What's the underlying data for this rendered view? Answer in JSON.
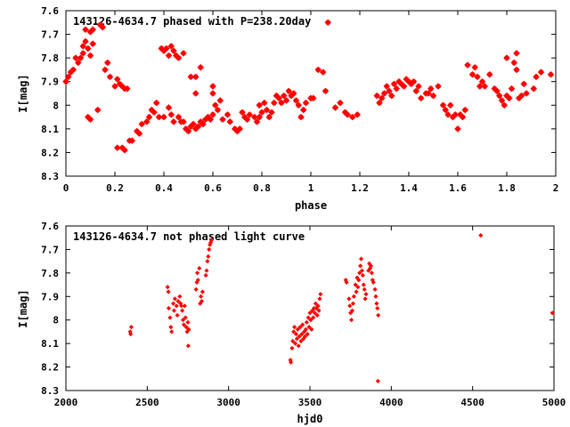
{
  "chart_data": [
    {
      "type": "scatter",
      "title": "143126-4634.7 phased with P=238.20day",
      "xlabel": "phase",
      "ylabel": "I[mag]",
      "xlim": [
        0,
        2
      ],
      "ylim": [
        8.3,
        7.6
      ],
      "y_inverted": true,
      "xticks": [
        0,
        0.2,
        0.4,
        0.6,
        0.8,
        1,
        1.2,
        1.4,
        1.6,
        1.8,
        2
      ],
      "xtick_labels": [
        "0",
        "0.2",
        "0.4",
        "0.6",
        "0.8",
        "1",
        "1.2",
        "1.4",
        "1.6",
        "1.8",
        "2"
      ],
      "yticks": [
        7.6,
        7.7,
        7.8,
        7.9,
        8.0,
        8.1,
        8.2,
        8.3
      ],
      "ytick_labels": [
        "7.6",
        "7.7",
        "7.8",
        "7.9",
        "8",
        "8.1",
        "8.2",
        "8.3"
      ],
      "grid": false,
      "legend": "none",
      "marker_color": "#ff0000",
      "points": [
        [
          0.0,
          7.9
        ],
        [
          0.01,
          7.88
        ],
        [
          0.02,
          7.86
        ],
        [
          0.03,
          7.85
        ],
        [
          0.04,
          7.8
        ],
        [
          0.05,
          7.82
        ],
        [
          0.06,
          7.8
        ],
        [
          0.07,
          7.75
        ],
        [
          0.07,
          7.78
        ],
        [
          0.08,
          7.73
        ],
        [
          0.08,
          7.68
        ],
        [
          0.09,
          7.76
        ],
        [
          0.1,
          7.69
        ],
        [
          0.1,
          7.79
        ],
        [
          0.11,
          7.74
        ],
        [
          0.09,
          8.05
        ],
        [
          0.1,
          8.06
        ],
        [
          0.11,
          7.68
        ],
        [
          0.13,
          8.02
        ],
        [
          0.14,
          7.66
        ],
        [
          0.15,
          7.67
        ],
        [
          0.16,
          7.85
        ],
        [
          0.17,
          7.82
        ],
        [
          0.18,
          7.88
        ],
        [
          0.2,
          7.92
        ],
        [
          0.21,
          7.89
        ],
        [
          0.22,
          7.91
        ],
        [
          0.23,
          7.92
        ],
        [
          0.24,
          7.93
        ],
        [
          0.25,
          7.93
        ],
        [
          0.21,
          8.18
        ],
        [
          0.23,
          8.18
        ],
        [
          0.24,
          8.19
        ],
        [
          0.26,
          8.15
        ],
        [
          0.27,
          8.15
        ],
        [
          0.29,
          8.11
        ],
        [
          0.3,
          8.12
        ],
        [
          0.31,
          8.08
        ],
        [
          0.33,
          8.07
        ],
        [
          0.34,
          8.05
        ],
        [
          0.35,
          8.02
        ],
        [
          0.36,
          8.03
        ],
        [
          0.37,
          7.99
        ],
        [
          0.38,
          8.05
        ],
        [
          0.4,
          8.05
        ],
        [
          0.42,
          8.01
        ],
        [
          0.43,
          8.04
        ],
        [
          0.44,
          8.07
        ],
        [
          0.46,
          8.05
        ],
        [
          0.47,
          8.07
        ],
        [
          0.48,
          8.07
        ],
        [
          0.39,
          7.76
        ],
        [
          0.4,
          7.77
        ],
        [
          0.41,
          7.76
        ],
        [
          0.42,
          7.79
        ],
        [
          0.43,
          7.75
        ],
        [
          0.44,
          7.77
        ],
        [
          0.45,
          7.79
        ],
        [
          0.46,
          7.8
        ],
        [
          0.48,
          7.78
        ],
        [
          0.49,
          8.1
        ],
        [
          0.5,
          8.11
        ],
        [
          0.51,
          8.09
        ],
        [
          0.52,
          8.08
        ],
        [
          0.53,
          8.1
        ],
        [
          0.54,
          8.09
        ],
        [
          0.55,
          8.07
        ],
        [
          0.56,
          8.08
        ],
        [
          0.57,
          8.06
        ],
        [
          0.58,
          8.05
        ],
        [
          0.59,
          8.06
        ],
        [
          0.6,
          8.04
        ],
        [
          0.51,
          7.88
        ],
        [
          0.53,
          7.88
        ],
        [
          0.55,
          7.84
        ],
        [
          0.53,
          7.95
        ],
        [
          0.6,
          7.92
        ],
        [
          0.6,
          7.95
        ],
        [
          0.63,
          7.98
        ],
        [
          0.61,
          8.0
        ],
        [
          0.62,
          8.02
        ],
        [
          0.64,
          8.06
        ],
        [
          0.66,
          8.04
        ],
        [
          0.67,
          8.07
        ],
        [
          0.69,
          8.1
        ],
        [
          0.71,
          8.1
        ],
        [
          0.7,
          8.11
        ],
        [
          0.72,
          8.03
        ],
        [
          0.73,
          8.05
        ],
        [
          0.74,
          8.06
        ],
        [
          0.75,
          8.04
        ],
        [
          0.77,
          8.05
        ],
        [
          0.78,
          8.07
        ],
        [
          0.79,
          8.05
        ],
        [
          0.8,
          8.03
        ],
        [
          0.79,
          8.0
        ],
        [
          0.81,
          7.99
        ],
        [
          0.82,
          8.02
        ],
        [
          0.83,
          8.05
        ],
        [
          0.84,
          8.03
        ],
        [
          0.85,
          7.99
        ],
        [
          0.86,
          7.96
        ],
        [
          0.87,
          7.97
        ],
        [
          0.88,
          7.99
        ],
        [
          0.89,
          7.96
        ],
        [
          0.9,
          7.98
        ],
        [
          0.91,
          7.94
        ],
        [
          0.92,
          7.96
        ],
        [
          0.93,
          7.95
        ],
        [
          0.94,
          7.98
        ],
        [
          0.95,
          8.0
        ],
        [
          0.96,
          8.05
        ],
        [
          0.97,
          8.02
        ],
        [
          0.98,
          7.99
        ],
        [
          1.0,
          7.97
        ],
        [
          1.01,
          7.97
        ],
        [
          1.03,
          7.85
        ],
        [
          1.05,
          7.86
        ],
        [
          1.06,
          7.94
        ],
        [
          1.07,
          7.65
        ],
        [
          1.1,
          8.01
        ],
        [
          1.12,
          7.99
        ],
        [
          1.14,
          8.03
        ],
        [
          1.15,
          8.04
        ],
        [
          1.17,
          8.05
        ],
        [
          1.19,
          8.04
        ],
        [
          1.28,
          7.99
        ],
        [
          1.27,
          7.96
        ],
        [
          1.29,
          7.97
        ],
        [
          1.3,
          7.95
        ],
        [
          1.31,
          7.92
        ],
        [
          1.32,
          7.94
        ],
        [
          1.33,
          7.96
        ],
        [
          1.34,
          7.91
        ],
        [
          1.35,
          7.93
        ],
        [
          1.36,
          7.9
        ],
        [
          1.37,
          7.91
        ],
        [
          1.38,
          7.92
        ],
        [
          1.39,
          7.89
        ],
        [
          1.4,
          7.9
        ],
        [
          1.41,
          7.91
        ],
        [
          1.42,
          7.9
        ],
        [
          1.43,
          7.94
        ],
        [
          1.44,
          7.92
        ],
        [
          1.45,
          7.97
        ],
        [
          1.47,
          7.95
        ],
        [
          1.48,
          7.95
        ],
        [
          1.49,
          7.93
        ],
        [
          1.5,
          7.96
        ],
        [
          1.52,
          7.92
        ],
        [
          1.54,
          8.0
        ],
        [
          1.55,
          8.02
        ],
        [
          1.56,
          8.04
        ],
        [
          1.57,
          8.0
        ],
        [
          1.58,
          8.05
        ],
        [
          1.59,
          8.04
        ],
        [
          1.6,
          8.1
        ],
        [
          1.61,
          8.04
        ],
        [
          1.62,
          8.05
        ],
        [
          1.63,
          8.02
        ],
        [
          1.64,
          7.83
        ],
        [
          1.66,
          7.87
        ],
        [
          1.67,
          7.84
        ],
        [
          1.68,
          7.88
        ],
        [
          1.69,
          7.92
        ],
        [
          1.7,
          7.9
        ],
        [
          1.71,
          7.92
        ],
        [
          1.73,
          7.87
        ],
        [
          1.75,
          7.93
        ],
        [
          1.76,
          7.94
        ],
        [
          1.77,
          7.96
        ],
        [
          1.78,
          7.98
        ],
        [
          1.79,
          8.0
        ],
        [
          1.8,
          7.96
        ],
        [
          1.81,
          7.97
        ],
        [
          1.82,
          7.93
        ],
        [
          1.83,
          7.82
        ],
        [
          1.84,
          7.85
        ],
        [
          1.85,
          7.97
        ],
        [
          1.86,
          7.96
        ],
        [
          1.87,
          7.91
        ],
        [
          1.88,
          7.95
        ],
        [
          1.91,
          7.93
        ],
        [
          1.92,
          7.88
        ],
        [
          1.94,
          7.86
        ],
        [
          1.98,
          7.87
        ],
        [
          1.8,
          7.8
        ],
        [
          1.84,
          7.78
        ]
      ]
    },
    {
      "type": "scatter",
      "title": "143126-4634.7 not phased light curve",
      "xlabel": "hjd0",
      "ylabel": "I[mag]",
      "xlim": [
        2000,
        5000
      ],
      "ylim": [
        8.3,
        7.6
      ],
      "y_inverted": true,
      "xticks": [
        2000,
        2500,
        3000,
        3500,
        4000,
        4500,
        5000
      ],
      "xtick_labels": [
        "2000",
        "2500",
        "3000",
        "3500",
        "4000",
        "4500",
        "5000"
      ],
      "yticks": [
        7.6,
        7.7,
        7.8,
        7.9,
        8.0,
        8.1,
        8.2,
        8.3
      ],
      "ytick_labels": [
        "7.6",
        "7.7",
        "7.8",
        "7.9",
        "8",
        "8.1",
        "8.2",
        "8.3"
      ],
      "grid": false,
      "legend": "none",
      "marker_color": "#ff0000",
      "points": [
        [
          2395,
          8.05
        ],
        [
          2398,
          8.06
        ],
        [
          2402,
          8.03
        ],
        [
          2625,
          7.86
        ],
        [
          2630,
          7.88
        ],
        [
          2632,
          7.95
        ],
        [
          2640,
          7.99
        ],
        [
          2645,
          8.03
        ],
        [
          2650,
          8.05
        ],
        [
          2660,
          7.93
        ],
        [
          2665,
          7.96
        ],
        [
          2670,
          7.91
        ],
        [
          2680,
          7.94
        ],
        [
          2685,
          7.98
        ],
        [
          2690,
          7.92
        ],
        [
          2700,
          7.9
        ],
        [
          2705,
          7.93
        ],
        [
          2710,
          7.94
        ],
        [
          2715,
          7.96
        ],
        [
          2720,
          8.0
        ],
        [
          2725,
          8.02
        ],
        [
          2730,
          7.94
        ],
        [
          2735,
          7.99
        ],
        [
          2740,
          8.03
        ],
        [
          2745,
          8.05
        ],
        [
          2750,
          8.01
        ],
        [
          2752,
          8.11
        ],
        [
          2755,
          8.04
        ],
        [
          2800,
          7.87
        ],
        [
          2805,
          7.84
        ],
        [
          2808,
          7.8
        ],
        [
          2812,
          7.83
        ],
        [
          2820,
          7.78
        ],
        [
          2825,
          7.93
        ],
        [
          2830,
          7.9
        ],
        [
          2835,
          7.92
        ],
        [
          2840,
          7.88
        ],
        [
          2860,
          7.81
        ],
        [
          2865,
          7.79
        ],
        [
          2870,
          7.75
        ],
        [
          2875,
          7.73
        ],
        [
          2880,
          7.7
        ],
        [
          2885,
          7.68
        ],
        [
          2890,
          7.67
        ],
        [
          2895,
          7.66
        ],
        [
          3380,
          8.17
        ],
        [
          3383,
          8.18
        ],
        [
          3390,
          8.12
        ],
        [
          3395,
          8.09
        ],
        [
          3400,
          8.05
        ],
        [
          3405,
          8.03
        ],
        [
          3410,
          8.1
        ],
        [
          3415,
          8.06
        ],
        [
          3420,
          8.08
        ],
        [
          3425,
          8.04
        ],
        [
          3430,
          8.11
        ],
        [
          3435,
          8.07
        ],
        [
          3440,
          8.03
        ],
        [
          3445,
          8.09
        ],
        [
          3450,
          8.06
        ],
        [
          3455,
          8.02
        ],
        [
          3460,
          8.08
        ],
        [
          3465,
          8.05
        ],
        [
          3470,
          8.07
        ],
        [
          3475,
          8.04
        ],
        [
          3480,
          8.01
        ],
        [
          3485,
          8.06
        ],
        [
          3490,
          7.99
        ],
        [
          3495,
          8.03
        ],
        [
          3500,
          7.97
        ],
        [
          3505,
          8.0
        ],
        [
          3510,
          8.04
        ],
        [
          3515,
          7.96
        ],
        [
          3520,
          7.99
        ],
        [
          3525,
          7.95
        ],
        [
          3530,
          7.97
        ],
        [
          3535,
          7.93
        ],
        [
          3540,
          7.95
        ],
        [
          3545,
          7.98
        ],
        [
          3550,
          7.94
        ],
        [
          3555,
          7.96
        ],
        [
          3560,
          7.91
        ],
        [
          3565,
          7.89
        ],
        [
          3720,
          7.83
        ],
        [
          3725,
          7.84
        ],
        [
          3740,
          7.91
        ],
        [
          3745,
          7.94
        ],
        [
          3750,
          7.97
        ],
        [
          3755,
          8.0
        ],
        [
          3760,
          7.96
        ],
        [
          3765,
          7.93
        ],
        [
          3770,
          7.9
        ],
        [
          3780,
          7.85
        ],
        [
          3785,
          7.88
        ],
        [
          3790,
          7.82
        ],
        [
          3795,
          7.86
        ],
        [
          3800,
          7.83
        ],
        [
          3805,
          7.8
        ],
        [
          3810,
          7.77
        ],
        [
          3815,
          7.74
        ],
        [
          3820,
          7.79
        ],
        [
          3825,
          7.81
        ],
        [
          3830,
          7.85
        ],
        [
          3835,
          7.87
        ],
        [
          3840,
          7.91
        ],
        [
          3845,
          7.89
        ],
        [
          3860,
          7.79
        ],
        [
          3865,
          7.76
        ],
        [
          3870,
          7.78
        ],
        [
          3875,
          7.77
        ],
        [
          3880,
          7.8
        ],
        [
          3885,
          7.83
        ],
        [
          3890,
          7.84
        ],
        [
          3900,
          7.87
        ],
        [
          3905,
          7.9
        ],
        [
          3910,
          7.93
        ],
        [
          3915,
          7.95
        ],
        [
          3918,
          8.26
        ],
        [
          3920,
          7.98
        ]
      ],
      "extra_points": [
        [
          4550,
          7.64
        ],
        [
          4990,
          7.97
        ]
      ]
    }
  ]
}
